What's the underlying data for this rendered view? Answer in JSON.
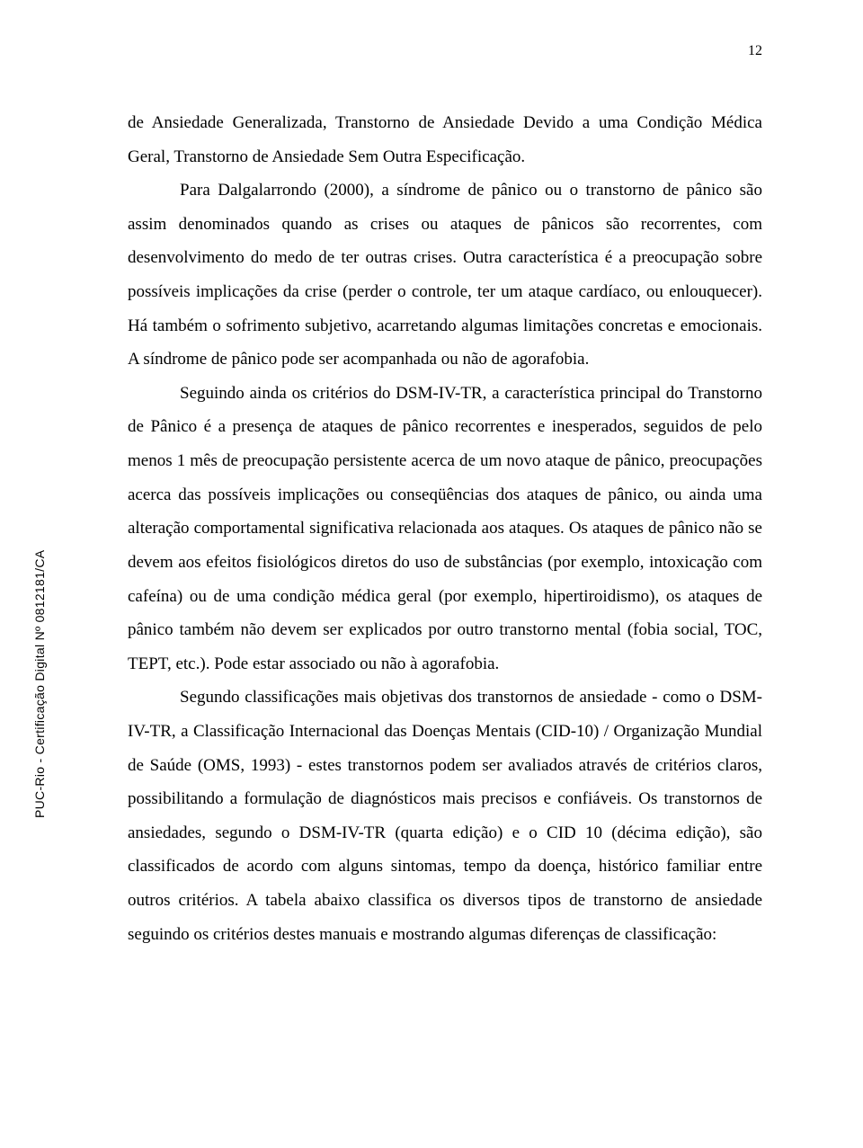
{
  "page": {
    "number": "12",
    "background_color": "#ffffff",
    "text_color": "#000000"
  },
  "typography": {
    "body_font": "Times New Roman",
    "body_fontsize_pt": 14,
    "line_height": 1.98,
    "side_font": "Arial",
    "side_fontsize_pt": 10
  },
  "side_label": "PUC-Rio - Certificação Digital Nº 0812181/CA",
  "paragraphs": [
    "de Ansiedade Generalizada, Transtorno de Ansiedade Devido a uma Condição Médica Geral, Transtorno de Ansiedade Sem Outra Especificação.",
    "Para Dalgalarrondo (2000), a síndrome de pânico ou o transtorno de pânico são assim denominados quando as crises ou ataques de pânicos são recorrentes, com desenvolvimento do medo de ter outras crises. Outra característica é a preocupação sobre possíveis implicações da crise (perder o controle, ter um ataque cardíaco, ou enlouquecer). Há também o sofrimento subjetivo, acarretando algumas limitações concretas e emocionais. A síndrome de pânico pode ser acompanhada ou não de agorafobia.",
    "Seguindo ainda os critérios do DSM-IV-TR, a característica principal do Transtorno de Pânico é a presença de ataques de pânico recorrentes e inesperados, seguidos de pelo menos 1 mês de preocupação persistente acerca de um novo ataque de pânico, preocupações acerca das possíveis implicações ou conseqüências dos ataques de pânico, ou ainda uma alteração comportamental significativa relacionada aos ataques. Os ataques de pânico não se devem aos efeitos fisiológicos diretos do uso de substâncias (por exemplo, intoxicação com cafeína) ou de uma condição médica geral (por exemplo, hipertiroidismo), os ataques de pânico também não devem ser explicados por outro transtorno mental (fobia social, TOC, TEPT, etc.). Pode estar associado ou não à agorafobia.",
    "Segundo classificações mais objetivas dos transtornos de ansiedade - como o DSM-IV-TR, a Classificação Internacional das Doenças Mentais (CID-10) / Organização Mundial de Saúde (OMS, 1993) - estes transtornos podem ser avaliados através de critérios claros, possibilitando a formulação de diagnósticos mais precisos e confiáveis. Os transtornos de ansiedades, segundo o DSM-IV-TR (quarta edição) e o CID 10 (décima edição), são classificados de acordo com alguns sintomas, tempo da doença, histórico familiar entre outros critérios. A tabela abaixo classifica os diversos tipos de transtorno de ansiedade seguindo os critérios destes manuais e mostrando algumas diferenças de classificação:"
  ]
}
